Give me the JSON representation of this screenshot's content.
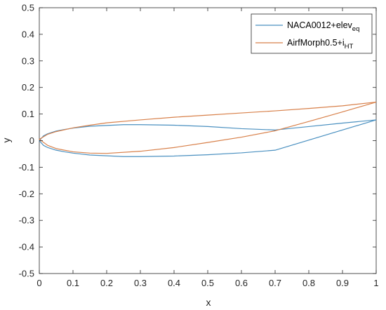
{
  "chart_data": {
    "type": "line",
    "xlabel": "x",
    "ylabel": "y",
    "xlim": [
      0,
      1
    ],
    "ylim": [
      -0.5,
      0.5
    ],
    "xticks": [
      0,
      0.1,
      0.2,
      0.3,
      0.4,
      0.5,
      0.6,
      0.7,
      0.8,
      0.9,
      1
    ],
    "xtick_labels": [
      "0",
      "0.1",
      "0.2",
      "0.3",
      "0.4",
      "0.5",
      "0.6",
      "0.7",
      "0.8",
      "0.9",
      "1"
    ],
    "yticks": [
      -0.5,
      -0.4,
      -0.3,
      -0.2,
      -0.1,
      0,
      0.1,
      0.2,
      0.3,
      0.4,
      0.5
    ],
    "ytick_labels": [
      "-0.5",
      "-0.4",
      "-0.3",
      "-0.2",
      "-0.1",
      "0",
      "0.1",
      "0.2",
      "0.3",
      "0.4",
      "0.5"
    ],
    "grid": false,
    "legend_position": "top-right",
    "series": [
      {
        "name": "NACA0012+elev",
        "name_sub": "eq",
        "color": "#4a90c0",
        "x": [
          1.0,
          0.95,
          0.9,
          0.8,
          0.7,
          0.6,
          0.5,
          0.4,
          0.3,
          0.25,
          0.2,
          0.15,
          0.1,
          0.075,
          0.05,
          0.025,
          0.0125,
          0.0,
          0.0125,
          0.025,
          0.05,
          0.075,
          0.1,
          0.15,
          0.2,
          0.25,
          0.3,
          0.4,
          0.5,
          0.6,
          0.7,
          1.0
        ],
        "y": [
          0.078,
          0.072,
          0.066,
          0.053,
          0.04,
          0.045,
          0.053,
          0.058,
          0.06,
          0.06,
          0.057,
          0.054,
          0.047,
          0.042,
          0.036,
          0.026,
          0.018,
          0.0,
          -0.018,
          -0.026,
          -0.036,
          -0.042,
          -0.047,
          -0.054,
          -0.057,
          -0.06,
          -0.06,
          -0.058,
          -0.053,
          -0.046,
          -0.036,
          0.078
        ]
      },
      {
        "name": "AirfMorph0.5+i",
        "name_sub": "HT",
        "color": "#d8804a",
        "x": [
          1.0,
          0.9,
          0.8,
          0.7,
          0.6,
          0.5,
          0.4,
          0.3,
          0.2,
          0.15,
          0.1,
          0.05,
          0.025,
          0.0,
          0.025,
          0.05,
          0.1,
          0.15,
          0.2,
          0.3,
          0.4,
          0.5,
          0.6,
          0.7,
          0.8,
          0.9,
          1.0
        ],
        "y": [
          0.145,
          0.131,
          0.121,
          0.112,
          0.104,
          0.096,
          0.088,
          0.078,
          0.067,
          0.058,
          0.048,
          0.034,
          0.024,
          0.005,
          -0.018,
          -0.03,
          -0.042,
          -0.047,
          -0.048,
          -0.04,
          -0.026,
          -0.007,
          0.013,
          0.037,
          0.072,
          0.108,
          0.145
        ]
      }
    ]
  }
}
